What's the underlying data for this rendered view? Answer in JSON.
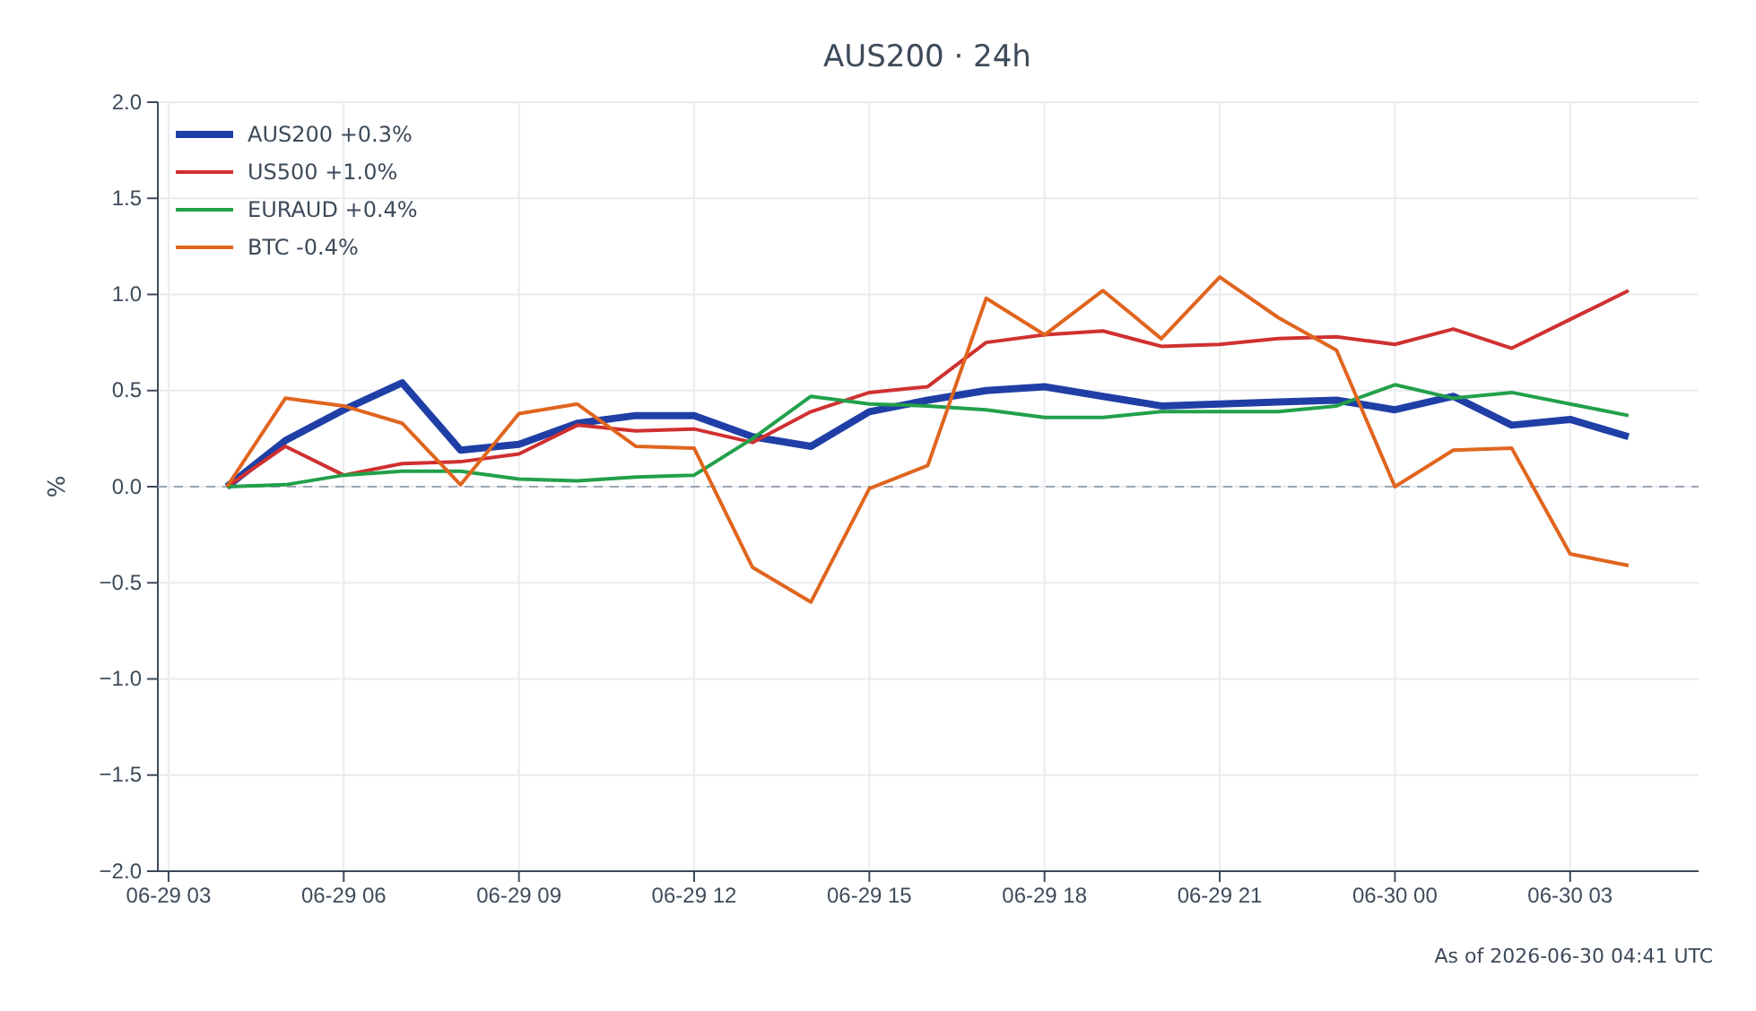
{
  "chart_data": {
    "type": "line",
    "title": "AUS200 · 24h",
    "ylabel": "%",
    "x": [
      "2026-06-29T04:00",
      "2026-06-29T05:00",
      "2026-06-29T06:00",
      "2026-06-29T07:00",
      "2026-06-29T08:00",
      "2026-06-29T09:00",
      "2026-06-29T10:00",
      "2026-06-29T11:00",
      "2026-06-29T12:00",
      "2026-06-29T13:00",
      "2026-06-29T14:00",
      "2026-06-29T15:00",
      "2026-06-29T16:00",
      "2026-06-29T17:00",
      "2026-06-29T18:00",
      "2026-06-29T19:00",
      "2026-06-29T20:00",
      "2026-06-29T21:00",
      "2026-06-29T22:00",
      "2026-06-29T23:00",
      "2026-06-30T00:00",
      "2026-06-30T01:00",
      "2026-06-30T02:00",
      "2026-06-30T03:00",
      "2026-06-30T04:00"
    ],
    "series": [
      {
        "name": "AUS200 +0.3%",
        "color": "#1f3fa6",
        "values": [
          0,
          0.24,
          0.4,
          0.54,
          0.19,
          0.22,
          0.33,
          0.37,
          0.37,
          0.26,
          0.21,
          0.39,
          0.45,
          0.5,
          0.52,
          0.47,
          0.42,
          0.43,
          0.44,
          0.45,
          0.4,
          0.47,
          0.32,
          0.35,
          0.26
        ]
      },
      {
        "name": "US500 +1.0%",
        "color": "#d03030",
        "values": [
          0,
          0.21,
          0.06,
          0.12,
          0.13,
          0.17,
          0.32,
          0.29,
          0.3,
          0.23,
          0.39,
          0.49,
          0.52,
          0.75,
          0.79,
          0.81,
          0.73,
          0.74,
          0.77,
          0.78,
          0.74,
          0.82,
          0.72,
          0.87,
          1.02
        ]
      },
      {
        "name": "EURAUD +0.4%",
        "color": "#22a04a",
        "values": [
          0,
          0.01,
          0.06,
          0.08,
          0.08,
          0.04,
          0.03,
          0.05,
          0.06,
          0.25,
          0.47,
          0.43,
          0.42,
          0.4,
          0.36,
          0.36,
          0.39,
          0.39,
          0.39,
          0.42,
          0.53,
          0.46,
          0.49,
          0.43,
          0.37
        ]
      },
      {
        "name": "BTC -0.4%",
        "color": "#e0651e",
        "values": [
          0,
          0.46,
          0.42,
          0.33,
          0.01,
          0.38,
          0.43,
          0.21,
          0.2,
          -0.42,
          -0.6,
          -0.01,
          0.11,
          0.98,
          0.79,
          1.02,
          0.77,
          1.09,
          0.88,
          0.71,
          0.0,
          0.19,
          0.2,
          -0.35,
          -0.41
        ]
      }
    ],
    "xlim": [
      "2026-06-29T02:49",
      "2026-06-30T05:12"
    ],
    "xticks": [
      {
        "value": "2026-06-29T03:00",
        "label": "06-29 03"
      },
      {
        "value": "2026-06-29T06:00",
        "label": "06-29 06"
      },
      {
        "value": "2026-06-29T09:00",
        "label": "06-29 09"
      },
      {
        "value": "2026-06-29T12:00",
        "label": "06-29 12"
      },
      {
        "value": "2026-06-29T15:00",
        "label": "06-29 15"
      },
      {
        "value": "2026-06-29T18:00",
        "label": "06-29 18"
      },
      {
        "value": "2026-06-29T21:00",
        "label": "06-29 21"
      },
      {
        "value": "2026-06-30T00:00",
        "label": "06-30 00"
      },
      {
        "value": "2026-06-30T03:00",
        "label": "06-30 03"
      }
    ],
    "ylim": [
      -2,
      2
    ],
    "yticks": [
      {
        "value": -2,
        "label": "−2.0"
      },
      {
        "value": -1.5,
        "label": "−1.5"
      },
      {
        "value": -1,
        "label": "−1.0"
      },
      {
        "value": -0.5,
        "label": "−0.5"
      },
      {
        "value": 0,
        "label": "0.0"
      },
      {
        "value": 0.5,
        "label": "0.5"
      },
      {
        "value": 1,
        "label": "1.0"
      },
      {
        "value": 1.5,
        "label": "1.5"
      },
      {
        "value": 2,
        "label": "2.0"
      }
    ],
    "ref_lines": [
      {
        "axis": "y",
        "value": 0,
        "color": "#9aa5b1",
        "line_style": "dashed"
      }
    ],
    "grid": true,
    "legend": "top left",
    "marker": "none",
    "line_style": "solid",
    "annotations": [
      "As of 2026-06-30 04:41 UTC"
    ]
  }
}
